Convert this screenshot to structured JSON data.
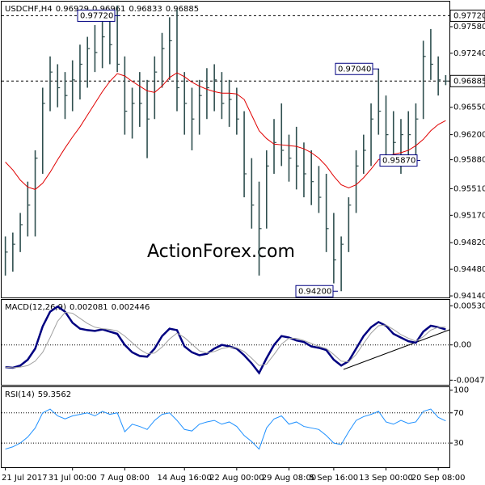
{
  "chart_data": [
    {
      "type": "ohlc",
      "title": "USDCHF,H4",
      "header_values": [
        0.96929,
        0.96961,
        0.96833,
        0.96885
      ],
      "watermark": "ActionForex.com",
      "color": "#2f4f4f",
      "categories": [
        "21 Jul 2017",
        null,
        null,
        null,
        null,
        null,
        null,
        null,
        null,
        "31 Jul 00:00",
        null,
        null,
        null,
        null,
        null,
        null,
        "7 Aug 08:00",
        null,
        null,
        null,
        null,
        null,
        null,
        null,
        "14 Aug 16:00",
        null,
        null,
        null,
        null,
        null,
        null,
        "22 Aug 00:00",
        null,
        null,
        null,
        null,
        null,
        null,
        "29 Aug 08:00",
        null,
        null,
        null,
        null,
        null,
        "5 Sep 16:00",
        null,
        null,
        null,
        null,
        null,
        null,
        "13 Sep 00:00",
        null,
        null,
        null,
        null,
        null,
        null,
        "20 Sep 08:00",
        null
      ],
      "high": [
        0.949,
        0.9495,
        0.952,
        0.956,
        0.96,
        0.968,
        0.972,
        0.971,
        0.97,
        0.9715,
        0.9735,
        0.9745,
        0.976,
        0.9772,
        0.9765,
        0.9785,
        0.972,
        0.968,
        0.97,
        0.969,
        0.972,
        0.975,
        0.977,
        0.978,
        0.97,
        0.968,
        0.969,
        0.9705,
        0.971,
        0.97,
        0.969,
        0.968,
        0.965,
        0.959,
        0.956,
        0.96,
        0.964,
        0.966,
        0.962,
        0.963,
        0.961,
        0.96,
        0.958,
        0.957,
        0.952,
        0.949,
        0.954,
        0.96,
        0.962,
        0.966,
        0.9704,
        0.967,
        0.965,
        0.964,
        0.965,
        0.966,
        0.974,
        0.9755,
        0.972,
        0.96961
      ],
      "low": [
        0.944,
        0.9445,
        0.947,
        0.949,
        0.949,
        0.957,
        0.965,
        0.9655,
        0.964,
        0.965,
        0.9665,
        0.968,
        0.97,
        0.9705,
        0.971,
        0.97,
        0.962,
        0.9615,
        0.963,
        0.959,
        0.964,
        0.968,
        0.969,
        0.965,
        0.962,
        0.96,
        0.962,
        0.964,
        0.965,
        0.964,
        0.963,
        0.962,
        0.954,
        0.95,
        0.944,
        0.95,
        0.957,
        0.958,
        0.956,
        0.955,
        0.954,
        0.953,
        0.952,
        0.947,
        0.943,
        0.942,
        0.947,
        0.952,
        0.957,
        0.958,
        0.962,
        0.959,
        0.958,
        0.957,
        0.9587,
        0.959,
        0.964,
        0.969,
        0.967,
        0.96833
      ],
      "close": [
        0.947,
        0.948,
        0.9505,
        0.953,
        0.959,
        0.966,
        0.97,
        0.968,
        0.967,
        0.969,
        0.971,
        0.973,
        0.9725,
        0.9745,
        0.9735,
        0.971,
        0.965,
        0.966,
        0.966,
        0.964,
        0.97,
        0.973,
        0.974,
        0.968,
        0.966,
        0.964,
        0.967,
        0.968,
        0.969,
        0.966,
        0.9665,
        0.964,
        0.957,
        0.953,
        0.95,
        0.958,
        0.961,
        0.96,
        0.959,
        0.958,
        0.957,
        0.956,
        0.954,
        0.95,
        0.946,
        0.948,
        0.953,
        0.958,
        0.96,
        0.964,
        0.965,
        0.962,
        0.961,
        0.962,
        0.962,
        0.964,
        0.972,
        0.971,
        0.969,
        0.96885
      ],
      "series": [
        {
          "color": "#e00000",
          "values": [
            0.9585,
            0.9575,
            0.9562,
            0.9553,
            0.955,
            0.9558,
            0.9572,
            0.9588,
            0.9603,
            0.9617,
            0.963,
            0.9645,
            0.966,
            0.9675,
            0.9688,
            0.9698,
            0.9695,
            0.9688,
            0.9682,
            0.9676,
            0.9674,
            0.9682,
            0.9693,
            0.9699,
            0.9694,
            0.9687,
            0.9682,
            0.9678,
            0.9675,
            0.9673,
            0.9673,
            0.9672,
            0.9665,
            0.9645,
            0.9625,
            0.9615,
            0.9608,
            0.9607,
            0.9606,
            0.9605,
            0.9602,
            0.9597,
            0.959,
            0.958,
            0.9567,
            0.9556,
            0.9552,
            0.9556,
            0.9565,
            0.9576,
            0.9588,
            0.9592,
            0.9595,
            0.9597,
            0.96,
            0.9606,
            0.9614,
            0.9625,
            0.9633,
            0.9638
          ]
        }
      ],
      "ylim": [
        0.9412,
        0.979
      ],
      "yticks": [
        {
          "value": 0.9772,
          "label": "0.97720"
        },
        {
          "value": 0.9758,
          "label": "0.97580"
        },
        {
          "value": 0.9724,
          "label": "0.97240"
        },
        {
          "value": 0.96885,
          "label": "0.96885"
        },
        {
          "value": 0.9655,
          "label": "0.96550"
        },
        {
          "value": 0.962,
          "label": "0.96200"
        },
        {
          "value": 0.9588,
          "label": "0.95880"
        },
        {
          "value": 0.9551,
          "label": "0.95510"
        },
        {
          "value": 0.9517,
          "label": "0.95170"
        },
        {
          "value": 0.9482,
          "label": "0.94820"
        },
        {
          "value": 0.9448,
          "label": "0.94480"
        },
        {
          "value": 0.9414,
          "label": "0.94140"
        }
      ],
      "reference_lines": [
        0.9772,
        0.96885
      ],
      "annotations": [
        {
          "value": 0.9772,
          "label": "0.97720"
        },
        {
          "value": 0.9704,
          "label": "0.97040"
        },
        {
          "value": 0.9587,
          "label": "0.95870"
        },
        {
          "value": 0.942,
          "label": "0.94200"
        }
      ]
    },
    {
      "type": "line",
      "title": "MACD(12,26,9)",
      "header_values": [
        0.002081,
        0.002446
      ],
      "series": [
        {
          "color": "#000080",
          "width": 2.5,
          "values": [
            -0.003,
            -0.0031,
            -0.0028,
            -0.002,
            -0.0005,
            0.0025,
            0.0045,
            0.0052,
            0.0045,
            0.003,
            0.0022,
            0.002,
            0.0019,
            0.0021,
            0.0018,
            0.0015,
            0.0,
            -0.001,
            -0.0015,
            -0.0016,
            -0.0005,
            0.0012,
            0.0022,
            0.002,
            -0.0002,
            -0.001,
            -0.0014,
            -0.0012,
            -0.0005,
            0.0,
            -0.0002,
            -0.0005,
            -0.0014,
            -0.0025,
            -0.0038,
            -0.0018,
            0.0,
            0.0012,
            0.001,
            0.0006,
            0.0004,
            -0.0002,
            -0.0004,
            -0.0007,
            -0.002,
            -0.0028,
            -0.0022,
            -0.0005,
            0.0012,
            0.0024,
            0.0031,
            0.0026,
            0.0015,
            0.001,
            0.0005,
            0.0003,
            0.0018,
            0.0026,
            0.0024,
            0.0021
          ]
        },
        {
          "color": "#a0a0a0",
          "width": 1,
          "values": [
            -0.003,
            -0.0031,
            -0.003,
            -0.0028,
            -0.0022,
            -0.001,
            0.001,
            0.0032,
            0.0044,
            0.0043,
            0.0036,
            0.0029,
            0.0024,
            0.0022,
            0.0021,
            0.0019,
            0.0012,
            0.0003,
            -0.0006,
            -0.0012,
            -0.0011,
            -0.0003,
            0.0008,
            0.0016,
            0.001,
            0.0001,
            -0.0008,
            -0.0011,
            -0.0009,
            -0.0005,
            -0.0003,
            -0.0004,
            -0.0009,
            -0.0018,
            -0.0028,
            -0.0026,
            -0.0013,
            0.0001,
            0.0009,
            0.0009,
            0.0006,
            0.0002,
            -0.0002,
            -0.0005,
            -0.0013,
            -0.0022,
            -0.0023,
            -0.0013,
            0.0002,
            0.0016,
            0.0026,
            0.0027,
            0.0021,
            0.0014,
            0.0009,
            0.0005,
            0.0011,
            0.002,
            0.0024,
            0.0024
          ]
        }
      ],
      "ylim": [
        -0.0054,
        0.0061
      ],
      "yticks": [
        0.005303,
        {
          "value": 0,
          "label": "0.00"
        },
        -0.004777
      ],
      "levels": [
        0
      ]
    },
    {
      "type": "line",
      "title": "RSI(14)",
      "header_values": [
        59.3562
      ],
      "series": [
        {
          "color": "#1e90ff",
          "width": 1,
          "values": [
            22,
            25,
            30,
            38,
            50,
            70,
            75,
            66,
            62,
            66,
            68,
            70,
            66,
            72,
            68,
            70,
            45,
            55,
            52,
            48,
            60,
            68,
            70,
            60,
            48,
            46,
            55,
            58,
            60,
            55,
            58,
            52,
            40,
            32,
            22,
            50,
            62,
            66,
            55,
            58,
            52,
            50,
            48,
            40,
            30,
            28,
            45,
            60,
            65,
            68,
            72,
            58,
            55,
            60,
            56,
            58,
            72,
            75,
            64,
            59.3562
          ]
        }
      ],
      "ylim": [
        -2,
        104
      ],
      "yticks": [
        100,
        70,
        30
      ],
      "levels": [
        70,
        30
      ]
    }
  ]
}
